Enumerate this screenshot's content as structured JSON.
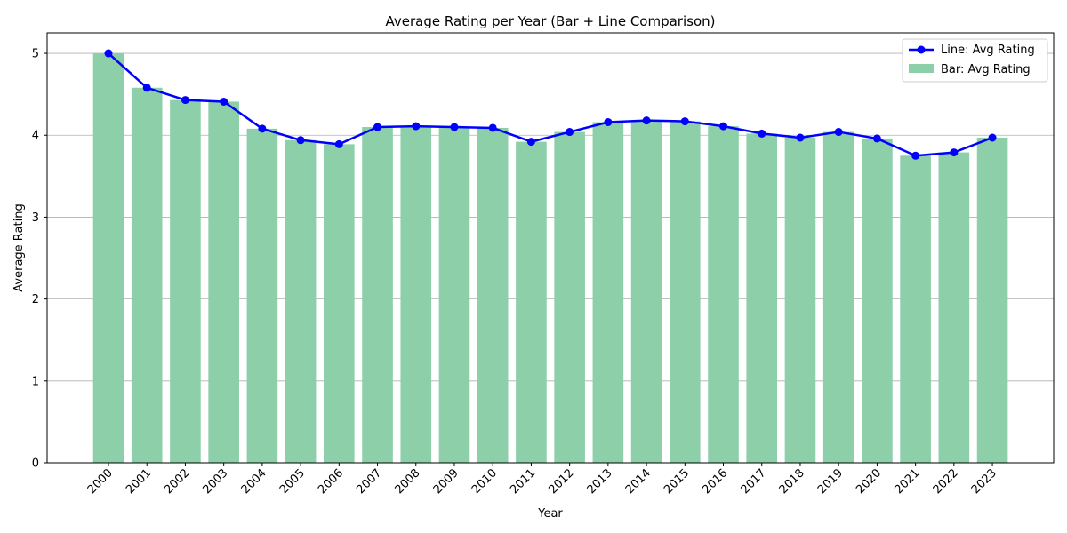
{
  "chart_data": {
    "type": "bar",
    "title": "Average Rating per Year (Bar + Line Comparison)",
    "xlabel": "Year",
    "ylabel": "Average Rating",
    "categories": [
      "2000",
      "2001",
      "2002",
      "2003",
      "2004",
      "2005",
      "2006",
      "2007",
      "2008",
      "2009",
      "2010",
      "2011",
      "2012",
      "2013",
      "2014",
      "2015",
      "2016",
      "2017",
      "2018",
      "2019",
      "2020",
      "2021",
      "2022",
      "2023"
    ],
    "ylim": [
      0,
      5.25
    ],
    "yticks": [
      0,
      1,
      2,
      3,
      4,
      5
    ],
    "grid": "y",
    "legend_position": "top-right",
    "series": [
      {
        "name": "Line: Avg Rating",
        "kind": "line",
        "color": "#0000ff",
        "values": [
          5.0,
          4.58,
          4.43,
          4.41,
          4.08,
          3.94,
          3.89,
          4.1,
          4.11,
          4.1,
          4.09,
          3.92,
          4.04,
          4.16,
          4.18,
          4.17,
          4.11,
          4.02,
          3.97,
          4.04,
          3.96,
          3.75,
          3.79,
          3.97
        ]
      },
      {
        "name": "Bar: Avg Rating",
        "kind": "bar",
        "color": "#8ccfa8",
        "values": [
          5.0,
          4.58,
          4.43,
          4.41,
          4.08,
          3.94,
          3.89,
          4.1,
          4.11,
          4.1,
          4.09,
          3.92,
          4.04,
          4.16,
          4.18,
          4.17,
          4.11,
          4.02,
          3.97,
          4.04,
          3.96,
          3.75,
          3.79,
          3.97
        ]
      }
    ]
  }
}
